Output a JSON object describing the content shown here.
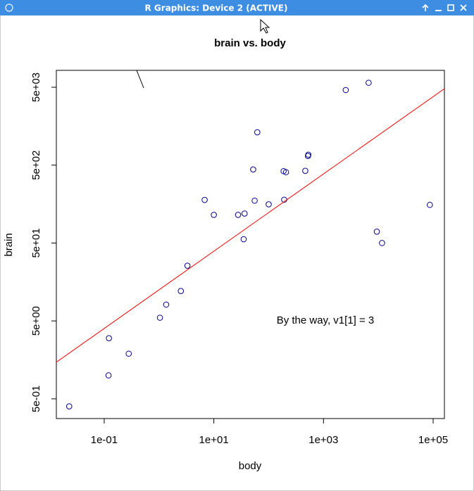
{
  "window_title": "R Graphics: Device 2 (ACTIVE)",
  "chart_data": {
    "type": "scatter",
    "title": "brain vs. body",
    "x_label": "body",
    "y_label": "brain",
    "x_log": true,
    "y_log": true,
    "xlim": [
      0.0134,
      160600
    ],
    "ylim": [
      0.279,
      8240
    ],
    "xticks": [
      {
        "value": 0.1,
        "label": "1e-01"
      },
      {
        "value": 10,
        "label": "1e+01"
      },
      {
        "value": 1000,
        "label": "1e+03"
      },
      {
        "value": 100000,
        "label": "1e+05"
      }
    ],
    "yticks": [
      {
        "value": 0.5,
        "label": "5e-01"
      },
      {
        "value": 5,
        "label": "5e+00"
      },
      {
        "value": 50,
        "label": "5e+01"
      },
      {
        "value": 500,
        "label": "5e+02"
      },
      {
        "value": 5000,
        "label": "5e+03"
      }
    ],
    "color": "#00008b",
    "x": [
      1.35,
      465,
      36.33,
      27.66,
      1.04,
      11700,
      2547,
      187.1,
      521,
      10,
      3.3,
      529,
      207,
      62,
      6654,
      9400,
      6.8,
      35,
      0.12,
      0.023,
      2.5,
      55.5,
      100,
      52.16,
      0.28,
      87000,
      0.122,
      192
    ],
    "values": [
      8.1,
      423,
      119.5,
      115,
      5.5,
      50,
      4603,
      419,
      655,
      115,
      25.6,
      680,
      406,
      1320,
      5712,
      70,
      179,
      56,
      1,
      0.4,
      12.1,
      175,
      157,
      440,
      1.9,
      154.5,
      3,
      180
    ],
    "fit_line": {
      "intercept": 1.098,
      "slope": 0.496,
      "color": "#ff0000"
    },
    "annotation": "By the way, v1[1] =  3"
  }
}
